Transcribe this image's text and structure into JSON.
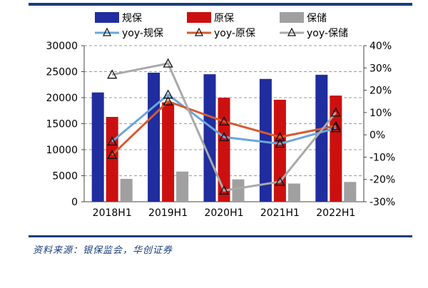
{
  "source_note": "资料来源：银保监会，华创证券",
  "colors": {
    "bar_series": [
      "#1f2d9e",
      "#cc1010",
      "#a0a0a0"
    ],
    "line_series": [
      "#6aa6dc",
      "#d65a32",
      "#a9a9a9"
    ],
    "rule": "#1a3d7c"
  },
  "chart_data": {
    "type": "bar",
    "categories": [
      "2018H1",
      "2019H1",
      "2020H1",
      "2021H1",
      "2022H1"
    ],
    "series": [
      {
        "name": "规保",
        "type": "bar",
        "axis": "left",
        "values": [
          21000,
          24800,
          24500,
          23600,
          24400
        ]
      },
      {
        "name": "原保",
        "type": "bar",
        "axis": "left",
        "values": [
          16300,
          19100,
          20000,
          19600,
          20400
        ]
      },
      {
        "name": "保储",
        "type": "bar",
        "axis": "left",
        "values": [
          4400,
          5800,
          4300,
          3500,
          3800
        ]
      },
      {
        "name": "yoy-规保",
        "type": "line",
        "axis": "right",
        "values": [
          -3,
          18,
          -1,
          -4,
          3
        ]
      },
      {
        "name": "yoy-原保",
        "type": "line",
        "axis": "right",
        "values": [
          -9,
          15,
          6,
          -1,
          4
        ]
      },
      {
        "name": "yoy-保储",
        "type": "line",
        "axis": "right",
        "values": [
          27,
          32,
          -25,
          -21,
          10
        ]
      }
    ],
    "y_left": {
      "min": 0,
      "max": 30000,
      "ticks": [
        "0",
        "5000",
        "10000",
        "15000",
        "20000",
        "25000",
        "30000"
      ]
    },
    "y_right": {
      "min": -30,
      "max": 40,
      "ticks": [
        "-30%",
        "-20%",
        "-10%",
        "0%",
        "10%",
        "20%",
        "30%",
        "40%"
      ]
    },
    "grid": true,
    "legend_position": "top"
  }
}
